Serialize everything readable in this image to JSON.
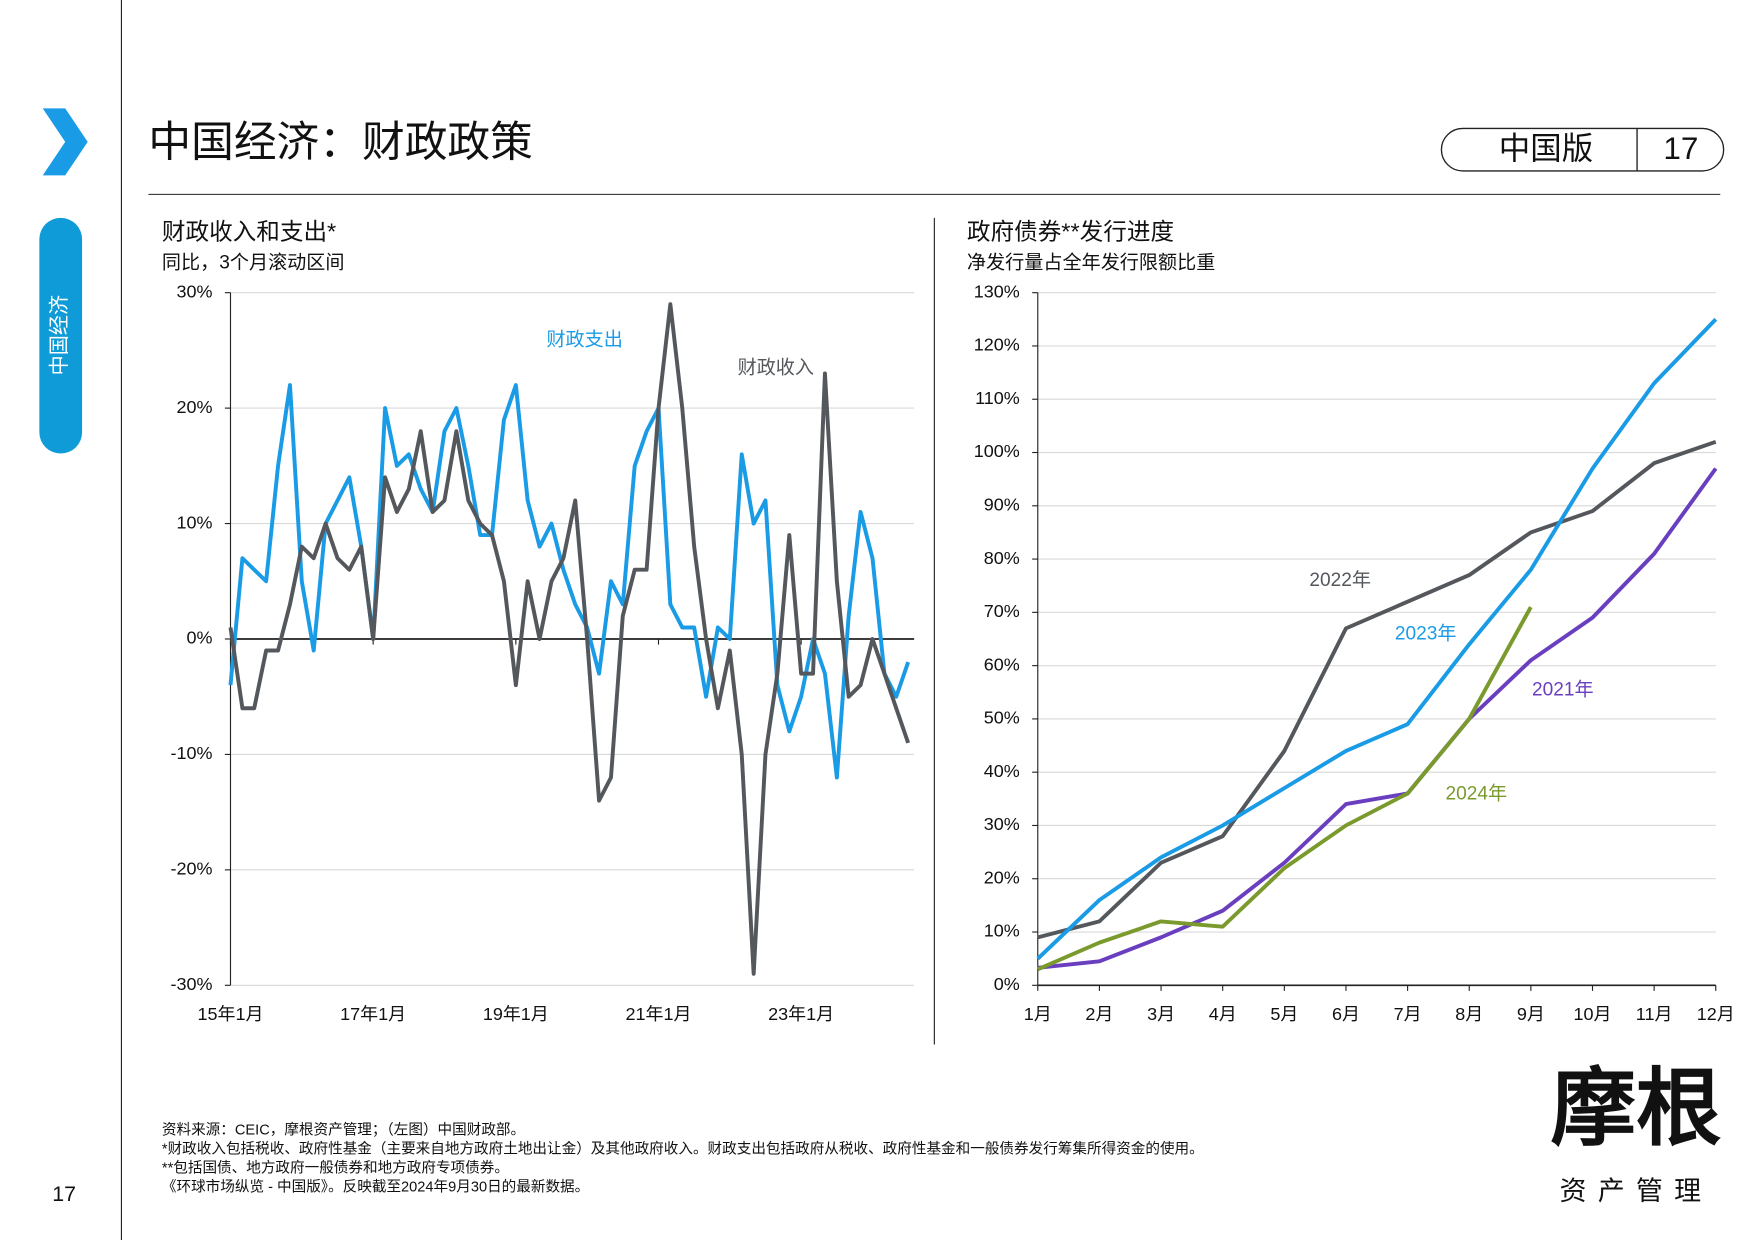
{
  "header": {
    "title": "中国经济：财政政策",
    "edition": "中国版",
    "page": "17"
  },
  "sidebar": {
    "section": "中国经济",
    "page": "17"
  },
  "logo": {
    "name": "摩根",
    "subtitle": "资产管理"
  },
  "notes": [
    "资料来源：CEIC，摩根资产管理；（左图）中国财政部。",
    "*财政收入包括税收、政府性基金（主要来自地方政府土地出让金）及其他政府收入。财政支出包括政府从税收、政府性基金和一般债券发行筹集所得资金的使用。",
    "**包括国债、地方政府一般债券和地方政府专项债券。",
    "《环球市场纵览 - 中国版》。反映截至2024年9月30日的最新数据。"
  ],
  "chart_data": [
    {
      "type": "line",
      "title": "财政收入和支出*",
      "subtitle": "同比，3个月滚动区间",
      "categories": [
        "15年1月",
        null,
        null,
        null,
        null,
        null,
        null,
        null,
        null,
        null,
        null,
        null,
        "17年1月",
        null,
        null,
        null,
        null,
        null,
        null,
        null,
        null,
        null,
        null,
        null,
        "19年1月",
        null,
        null,
        null,
        null,
        null,
        null,
        null,
        null,
        null,
        null,
        null,
        "21年1月",
        null,
        null,
        null,
        null,
        null,
        null,
        null,
        null,
        null,
        null,
        null,
        "23年1月",
        null,
        null,
        null,
        null,
        null,
        null,
        null,
        null,
        null
      ],
      "series": [
        {
          "name": "财政支出",
          "color": "#1a9be6",
          "values": [
            -4,
            7,
            6,
            5,
            15,
            22,
            5,
            -1,
            10,
            12,
            14,
            8,
            0,
            20,
            15,
            16,
            13,
            11,
            18,
            20,
            15,
            9,
            9,
            19,
            22,
            12,
            8,
            10,
            6,
            3,
            1,
            -3,
            5,
            3,
            15,
            18,
            20,
            3,
            1,
            1,
            -5,
            1,
            0,
            16,
            10,
            12,
            -4,
            -8,
            -5,
            0,
            -3,
            -12,
            2,
            11,
            7,
            -3,
            -5,
            -2
          ]
        },
        {
          "name": "财政收入",
          "color": "#54585c",
          "values": [
            1,
            -6,
            -6,
            -1,
            -1,
            3,
            8,
            7,
            10,
            7,
            6,
            8,
            0,
            14,
            11,
            13,
            18,
            11,
            12,
            18,
            12,
            10,
            9,
            5,
            -4,
            5,
            0,
            5,
            7,
            12,
            0,
            -14,
            -12,
            2,
            6,
            6,
            20,
            29,
            20,
            8,
            0,
            -6,
            -1,
            -10,
            -29,
            -10,
            -3,
            9,
            -3,
            -3,
            23,
            5,
            -5,
            -4,
            0,
            -3,
            -6,
            -9
          ]
        }
      ],
      "ylim": [
        -30,
        30
      ],
      "yticks": [
        {
          "value": 30,
          "label": "30%"
        },
        {
          "value": 20,
          "label": "20%"
        },
        {
          "value": 10,
          "label": "10%"
        },
        {
          "value": 0,
          "label": "0%"
        },
        {
          "value": -10,
          "label": "-10%"
        },
        {
          "value": -20,
          "label": "-20%"
        },
        {
          "value": -30,
          "label": "-30%"
        }
      ],
      "grid": true
    },
    {
      "type": "line",
      "title": "政府债券**发行进度",
      "subtitle": "净发行量占全年发行限额比重",
      "categories": [
        "1月",
        "2月",
        "3月",
        "4月",
        "5月",
        "6月",
        "7月",
        "8月",
        "9月",
        "10月",
        "11月",
        "12月"
      ],
      "series": [
        {
          "name": "2021年",
          "color": "#6a3fbf",
          "values": [
            3.3,
            4.5,
            9,
            14,
            23,
            34,
            36,
            50,
            61,
            69,
            81,
            97
          ]
        },
        {
          "name": "2022年",
          "color": "#54585c",
          "values": [
            9,
            12,
            23,
            28,
            44,
            67,
            72,
            77,
            85,
            89,
            98,
            102
          ]
        },
        {
          "name": "2023年",
          "color": "#1a9be6",
          "values": [
            5,
            16,
            24,
            30,
            37,
            44,
            49,
            64,
            78,
            97,
            113,
            125
          ]
        },
        {
          "name": "2024年",
          "color": "#7a9a2e",
          "values": [
            3,
            8,
            12,
            11,
            22,
            30,
            36,
            50,
            71,
            null,
            null,
            null
          ]
        }
      ],
      "ylim": [
        0,
        130
      ],
      "yticks": [
        {
          "value": 0,
          "label": "0%"
        },
        {
          "value": 10,
          "label": "10%"
        },
        {
          "value": 20,
          "label": "20%"
        },
        {
          "value": 30,
          "label": "30%"
        },
        {
          "value": 40,
          "label": "40%"
        },
        {
          "value": 50,
          "label": "50%"
        },
        {
          "value": 60,
          "label": "60%"
        },
        {
          "value": 70,
          "label": "70%"
        },
        {
          "value": 80,
          "label": "80%"
        },
        {
          "value": 90,
          "label": "90%"
        },
        {
          "value": 100,
          "label": "100%"
        },
        {
          "value": 110,
          "label": "110%"
        },
        {
          "value": 120,
          "label": "120%"
        },
        {
          "value": 130,
          "label": "130%"
        }
      ],
      "grid": true
    }
  ]
}
